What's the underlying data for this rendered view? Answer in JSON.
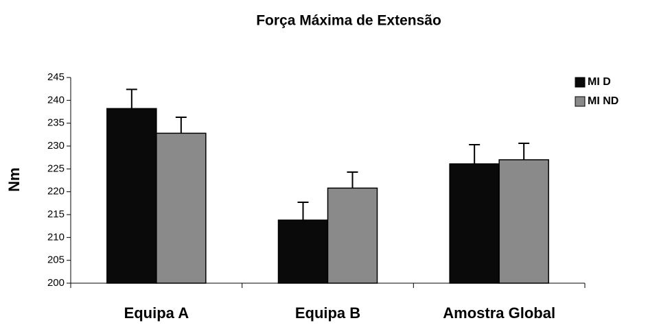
{
  "chart_data": {
    "type": "bar",
    "title": "Força Máxima de Extensão",
    "y_label": "Nm",
    "categories": [
      "Equipa A",
      "Equipa B",
      "Amostra Global"
    ],
    "series": [
      {
        "name": "MI D",
        "color": "#0a0a0a",
        "values": [
          238.2,
          213.8,
          226.1
        ],
        "errors": [
          4.2,
          3.9,
          4.2
        ]
      },
      {
        "name": "MI ND",
        "color": "#8a8a8a",
        "values": [
          232.8,
          220.8,
          227.0
        ],
        "errors": [
          3.5,
          3.5,
          3.6
        ]
      }
    ],
    "ylim": [
      200,
      245
    ],
    "yticks": [
      200,
      205,
      210,
      215,
      220,
      225,
      230,
      235,
      240,
      245
    ],
    "grid": false,
    "legend": "top-right"
  }
}
